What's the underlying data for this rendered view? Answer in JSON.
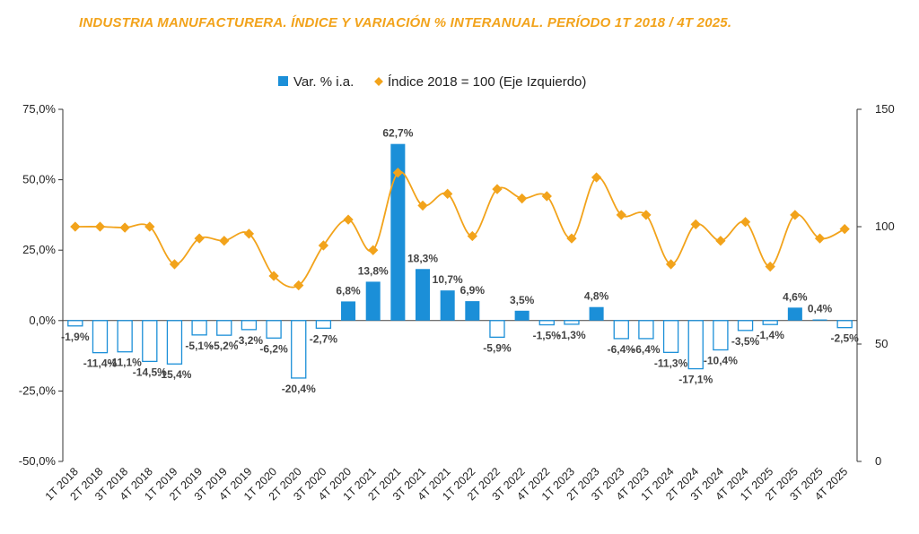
{
  "title": "INDUSTRIA MANUFACTURERA. ÍNDICE Y VARIACIÓN % INTERANUAL. PERÍODO 1T 2018 / 4T 2025.",
  "colors": {
    "bar": "#1B8FD8",
    "line": "#F2A31B",
    "title": "#F2A31B"
  },
  "chart_data": {
    "type": "bar+line",
    "categories": [
      "1T 2018",
      "2T 2018",
      "3T 2018",
      "4T 2018",
      "1T 2019",
      "2T 2019",
      "3T 2019",
      "4T 2019",
      "1T 2020",
      "2T 2020",
      "3T 2020",
      "4T 2020",
      "1T 2021",
      "2T 2021",
      "3T 2021",
      "4T 2021",
      "1T 2022",
      "2T 2022",
      "3T 2022",
      "4T 2022",
      "1T 2023",
      "2T 2023",
      "3T 2023",
      "4T 2023",
      "1T 2024",
      "2T 2024",
      "3T 2024",
      "4T 2024",
      "1T 2025",
      "2T 2025",
      "3T 2025",
      "4T 2025"
    ],
    "series": [
      {
        "name": "Var. % i.a.",
        "axis": "left",
        "kind": "bar",
        "values": [
          -1.9,
          -11.4,
          -11.1,
          -14.5,
          -15.4,
          -5.1,
          -5.2,
          -3.2,
          -6.2,
          -20.4,
          -2.7,
          6.8,
          13.8,
          62.7,
          18.3,
          10.7,
          6.9,
          -5.9,
          3.5,
          -1.5,
          -1.3,
          4.8,
          -6.4,
          -6.4,
          -11.3,
          -17.1,
          -10.4,
          -3.5,
          -1.4,
          4.6,
          0.4,
          -2.5
        ],
        "labels": [
          "-1,9%",
          "-11,4%",
          "-11,1%",
          "-14,5%",
          "-15,4%",
          "-5,1%",
          "-5,2%",
          "-3,2%",
          "-6,2%",
          "-20,4%",
          "-2,7%",
          "6,8%",
          "13,8%",
          "62,7%",
          "18,3%",
          "10,7%",
          "6,9%",
          "-5,9%",
          "3,5%",
          "-1,5%",
          "-1,3%",
          "4,8%",
          "-6,4%",
          "-6,4%",
          "-11,3%",
          "-17,1%",
          "-10,4%",
          "-3,5%",
          "-1,4%",
          "4,6%",
          "0,4%",
          "-2,5%"
        ]
      },
      {
        "name": "Índice 2018 = 100 (Eje Izquierdo)",
        "axis": "right",
        "kind": "line",
        "values": [
          100,
          100,
          99.6,
          100,
          84,
          95,
          94,
          97,
          79,
          75,
          92,
          103,
          90,
          123,
          109,
          114,
          96,
          116,
          112,
          113,
          95,
          121,
          105,
          105,
          84,
          101,
          94,
          102,
          83,
          105,
          95,
          99
        ]
      }
    ],
    "left_axis": {
      "min": -50,
      "max": 75,
      "ticks": [
        "-50,0%",
        "-25,0%",
        "0,0%",
        "25,0%",
        "50,0%",
        "75,0%"
      ]
    },
    "right_axis": {
      "min": 0,
      "max": 150,
      "ticks": [
        "0",
        "50",
        "100",
        "150"
      ]
    },
    "legend_position": "top-center",
    "grid": false
  }
}
